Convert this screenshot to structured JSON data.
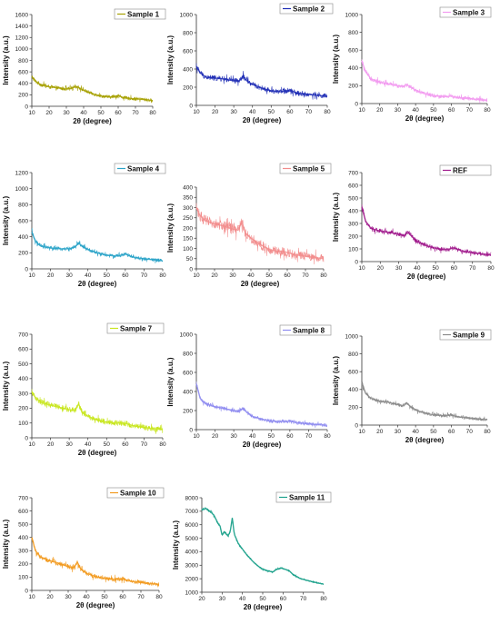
{
  "chart_data": [
    {
      "type": "line",
      "series": [
        {
          "name": "Sample 1",
          "color": "#a6a000"
        }
      ],
      "xlabel": "2θ (degree)",
      "ylabel": "Intensity (a.u.)",
      "xlim": [
        10,
        80
      ],
      "ylim": [
        0,
        1600
      ],
      "xticks": [
        10,
        20,
        30,
        40,
        50,
        60,
        70,
        80
      ],
      "yticks": [
        0,
        200,
        400,
        600,
        800,
        1000,
        1200,
        1400,
        1600
      ],
      "points": [
        [
          10,
          520
        ],
        [
          12,
          440
        ],
        [
          15,
          380
        ],
        [
          20,
          340
        ],
        [
          25,
          320
        ],
        [
          30,
          300
        ],
        [
          33,
          310
        ],
        [
          35,
          350
        ],
        [
          37,
          330
        ],
        [
          40,
          280
        ],
        [
          45,
          220
        ],
        [
          50,
          180
        ],
        [
          55,
          160
        ],
        [
          58,
          170
        ],
        [
          60,
          190
        ],
        [
          62,
          160
        ],
        [
          65,
          140
        ],
        [
          70,
          130
        ],
        [
          75,
          120
        ],
        [
          80,
          100
        ]
      ],
      "noise": 35
    },
    {
      "type": "line",
      "series": [
        {
          "name": "Sample 2",
          "color": "#1f2db5"
        }
      ],
      "xlabel": "2θ (degree)",
      "ylabel": "Intensity (a.u.)",
      "xlim": [
        10,
        80
      ],
      "ylim": [
        0,
        1000
      ],
      "xticks": [
        10,
        20,
        30,
        40,
        50,
        60,
        70,
        80
      ],
      "yticks": [
        0,
        200,
        400,
        600,
        800,
        1000
      ],
      "points": [
        [
          10,
          430
        ],
        [
          12,
          360
        ],
        [
          15,
          310
        ],
        [
          20,
          300
        ],
        [
          25,
          290
        ],
        [
          30,
          270
        ],
        [
          33,
          270
        ],
        [
          35,
          320
        ],
        [
          37,
          270
        ],
        [
          40,
          230
        ],
        [
          45,
          190
        ],
        [
          50,
          160
        ],
        [
          55,
          150
        ],
        [
          58,
          160
        ],
        [
          60,
          170
        ],
        [
          62,
          150
        ],
        [
          65,
          130
        ],
        [
          70,
          120
        ],
        [
          75,
          110
        ],
        [
          80,
          100
        ]
      ],
      "noise": 30
    },
    {
      "type": "line",
      "series": [
        {
          "name": "Sample 3",
          "color": "#f29af0"
        }
      ],
      "xlabel": "2θ (degree)",
      "ylabel": "Intensity (a.u.)",
      "xlim": [
        10,
        80
      ],
      "ylim": [
        0,
        1000
      ],
      "xticks": [
        10,
        20,
        30,
        40,
        50,
        60,
        70,
        80
      ],
      "yticks": [
        0,
        200,
        400,
        600,
        800,
        1000
      ],
      "points": [
        [
          10,
          480
        ],
        [
          12,
          360
        ],
        [
          15,
          280
        ],
        [
          20,
          240
        ],
        [
          25,
          220
        ],
        [
          30,
          200
        ],
        [
          33,
          195
        ],
        [
          35,
          210
        ],
        [
          37,
          190
        ],
        [
          40,
          150
        ],
        [
          45,
          110
        ],
        [
          50,
          90
        ],
        [
          55,
          80
        ],
        [
          58,
          80
        ],
        [
          60,
          85
        ],
        [
          62,
          75
        ],
        [
          65,
          65
        ],
        [
          70,
          55
        ],
        [
          75,
          45
        ],
        [
          80,
          40
        ]
      ],
      "noise": 25
    },
    {
      "type": "line",
      "series": [
        {
          "name": "Sample 4",
          "color": "#2aa3c8"
        }
      ],
      "xlabel": "2θ (degree)",
      "ylabel": "Intensity (a.u.)",
      "xlim": [
        10,
        80
      ],
      "ylim": [
        0,
        1200
      ],
      "xticks": [
        10,
        20,
        30,
        40,
        50,
        60,
        70,
        80
      ],
      "yticks": [
        0,
        200,
        400,
        600,
        800,
        1000,
        1200
      ],
      "points": [
        [
          10,
          460
        ],
        [
          12,
          340
        ],
        [
          15,
          280
        ],
        [
          20,
          260
        ],
        [
          25,
          250
        ],
        [
          30,
          250
        ],
        [
          33,
          270
        ],
        [
          35,
          320
        ],
        [
          37,
          280
        ],
        [
          40,
          240
        ],
        [
          45,
          200
        ],
        [
          50,
          170
        ],
        [
          55,
          160
        ],
        [
          58,
          170
        ],
        [
          60,
          185
        ],
        [
          62,
          165
        ],
        [
          65,
          140
        ],
        [
          70,
          125
        ],
        [
          75,
          115
        ],
        [
          80,
          100
        ]
      ],
      "noise": 25
    },
    {
      "type": "line",
      "series": [
        {
          "name": "Sample 5",
          "color": "#f28c8c"
        }
      ],
      "xlabel": "2θ (degree)",
      "ylabel": "Intensity (a.u.)",
      "xlim": [
        10,
        80
      ],
      "ylim": [
        0,
        400
      ],
      "xticks": [
        10,
        20,
        30,
        40,
        50,
        60,
        70,
        80
      ],
      "yticks": [
        0,
        50,
        100,
        150,
        200,
        250,
        300,
        350,
        400
      ],
      "points": [
        [
          10,
          300
        ],
        [
          12,
          260
        ],
        [
          15,
          235
        ],
        [
          20,
          220
        ],
        [
          25,
          210
        ],
        [
          30,
          195
        ],
        [
          33,
          190
        ],
        [
          35,
          230
        ],
        [
          37,
          175
        ],
        [
          40,
          150
        ],
        [
          45,
          120
        ],
        [
          50,
          95
        ],
        [
          55,
          85
        ],
        [
          58,
          85
        ],
        [
          60,
          80
        ],
        [
          62,
          75
        ],
        [
          65,
          68
        ],
        [
          70,
          62
        ],
        [
          75,
          55
        ],
        [
          80,
          50
        ]
      ],
      "noise": 22
    },
    {
      "type": "line",
      "series": [
        {
          "name": "REF",
          "color": "#a01a8c"
        }
      ],
      "xlabel": "2θ (degree)",
      "ylabel": "Intensity (a.u.)",
      "xlim": [
        10,
        80
      ],
      "ylim": [
        0,
        700
      ],
      "xticks": [
        10,
        20,
        30,
        40,
        50,
        60,
        70,
        80
      ],
      "yticks": [
        0,
        100,
        200,
        300,
        400,
        500,
        600,
        700
      ],
      "points": [
        [
          10,
          430
        ],
        [
          12,
          320
        ],
        [
          15,
          260
        ],
        [
          20,
          240
        ],
        [
          25,
          230
        ],
        [
          30,
          215
        ],
        [
          33,
          205
        ],
        [
          35,
          235
        ],
        [
          37,
          200
        ],
        [
          40,
          160
        ],
        [
          45,
          125
        ],
        [
          50,
          105
        ],
        [
          55,
          95
        ],
        [
          58,
          100
        ],
        [
          60,
          110
        ],
        [
          62,
          95
        ],
        [
          65,
          80
        ],
        [
          70,
          70
        ],
        [
          75,
          60
        ],
        [
          80,
          50
        ]
      ],
      "noise": 18
    },
    {
      "type": "line",
      "series": [
        {
          "name": "Sample 7",
          "color": "#c8e61e"
        }
      ],
      "xlabel": "2θ (degree)",
      "ylabel": "Intensity (a.u.)",
      "xlim": [
        10,
        80
      ],
      "ylim": [
        0,
        700
      ],
      "xticks": [
        10,
        20,
        30,
        40,
        50,
        60,
        70,
        80
      ],
      "yticks": [
        0,
        100,
        200,
        300,
        400,
        500,
        600,
        700
      ],
      "points": [
        [
          10,
          310
        ],
        [
          12,
          270
        ],
        [
          15,
          240
        ],
        [
          20,
          220
        ],
        [
          25,
          205
        ],
        [
          30,
          190
        ],
        [
          33,
          185
        ],
        [
          35,
          230
        ],
        [
          37,
          170
        ],
        [
          40,
          145
        ],
        [
          45,
          120
        ],
        [
          50,
          105
        ],
        [
          55,
          100
        ],
        [
          58,
          100
        ],
        [
          60,
          98
        ],
        [
          62,
          90
        ],
        [
          65,
          80
        ],
        [
          70,
          70
        ],
        [
          75,
          62
        ],
        [
          80,
          55
        ]
      ],
      "noise": 20
    },
    {
      "type": "line",
      "series": [
        {
          "name": "Sample 8",
          "color": "#8f8cf0"
        }
      ],
      "xlabel": "2θ (degree)",
      "ylabel": "Intensity (a.u.)",
      "xlim": [
        10,
        80
      ],
      "ylim": [
        0,
        1000
      ],
      "xticks": [
        10,
        20,
        30,
        40,
        50,
        60,
        70,
        80
      ],
      "yticks": [
        0,
        200,
        400,
        600,
        800,
        1000
      ],
      "points": [
        [
          10,
          480
        ],
        [
          12,
          330
        ],
        [
          15,
          270
        ],
        [
          20,
          240
        ],
        [
          25,
          220
        ],
        [
          30,
          200
        ],
        [
          33,
          195
        ],
        [
          35,
          225
        ],
        [
          37,
          180
        ],
        [
          40,
          140
        ],
        [
          45,
          110
        ],
        [
          50,
          90
        ],
        [
          55,
          85
        ],
        [
          58,
          85
        ],
        [
          60,
          90
        ],
        [
          62,
          80
        ],
        [
          65,
          70
        ],
        [
          70,
          60
        ],
        [
          75,
          52
        ],
        [
          80,
          45
        ]
      ],
      "noise": 22
    },
    {
      "type": "line",
      "series": [
        {
          "name": "Sample 9",
          "color": "#8a8a8a"
        }
      ],
      "xlabel": "2θ (degree)",
      "ylabel": "Intensity (a.u.)",
      "xlim": [
        10,
        80
      ],
      "ylim": [
        0,
        1000
      ],
      "xticks": [
        10,
        20,
        30,
        40,
        50,
        60,
        70,
        80
      ],
      "yticks": [
        0,
        200,
        400,
        600,
        800,
        1000
      ],
      "points": [
        [
          10,
          480
        ],
        [
          12,
          360
        ],
        [
          15,
          300
        ],
        [
          20,
          270
        ],
        [
          25,
          255
        ],
        [
          30,
          230
        ],
        [
          33,
          220
        ],
        [
          35,
          250
        ],
        [
          37,
          210
        ],
        [
          40,
          170
        ],
        [
          45,
          135
        ],
        [
          50,
          115
        ],
        [
          55,
          105
        ],
        [
          58,
          110
        ],
        [
          60,
          115
        ],
        [
          62,
          100
        ],
        [
          65,
          90
        ],
        [
          70,
          78
        ],
        [
          75,
          68
        ],
        [
          80,
          60
        ]
      ],
      "noise": 20
    },
    {
      "type": "line",
      "series": [
        {
          "name": "Sample 10",
          "color": "#f29a1e"
        }
      ],
      "xlabel": "2θ (degree)",
      "ylabel": "Intensity (a.u.)",
      "xlim": [
        10,
        80
      ],
      "ylim": [
        0,
        700
      ],
      "xticks": [
        10,
        20,
        30,
        40,
        50,
        60,
        70,
        80
      ],
      "yticks": [
        0,
        100,
        200,
        300,
        400,
        500,
        600,
        700
      ],
      "points": [
        [
          10,
          400
        ],
        [
          12,
          300
        ],
        [
          15,
          250
        ],
        [
          20,
          225
        ],
        [
          25,
          205
        ],
        [
          30,
          180
        ],
        [
          33,
          170
        ],
        [
          35,
          215
        ],
        [
          37,
          160
        ],
        [
          40,
          130
        ],
        [
          45,
          105
        ],
        [
          50,
          90
        ],
        [
          55,
          85
        ],
        [
          58,
          85
        ],
        [
          60,
          88
        ],
        [
          62,
          78
        ],
        [
          65,
          68
        ],
        [
          70,
          60
        ],
        [
          75,
          52
        ],
        [
          80,
          45
        ]
      ],
      "noise": 18
    },
    {
      "type": "line",
      "series": [
        {
          "name": "Sample 11",
          "color": "#1aa08a"
        }
      ],
      "xlabel": "2θ (degree)",
      "ylabel": "Intensity (a.u.)",
      "xlim": [
        20,
        80
      ],
      "ylim": [
        1000,
        8000
      ],
      "xticks": [
        20,
        30,
        40,
        50,
        60,
        70,
        80
      ],
      "yticks": [
        1000,
        2000,
        3000,
        4000,
        5000,
        6000,
        7000,
        8000
      ],
      "points": [
        [
          20,
          7100
        ],
        [
          22,
          7200
        ],
        [
          24,
          7000
        ],
        [
          26,
          6700
        ],
        [
          28,
          6100
        ],
        [
          29,
          5900
        ],
        [
          30,
          5200
        ],
        [
          31,
          5500
        ],
        [
          32,
          5300
        ],
        [
          33,
          5200
        ],
        [
          34,
          5500
        ],
        [
          35,
          6500
        ],
        [
          36,
          5300
        ],
        [
          38,
          4600
        ],
        [
          40,
          4200
        ],
        [
          42,
          3800
        ],
        [
          45,
          3300
        ],
        [
          48,
          2900
        ],
        [
          50,
          2700
        ],
        [
          52,
          2600
        ],
        [
          55,
          2500
        ],
        [
          57,
          2700
        ],
        [
          59,
          2800
        ],
        [
          61,
          2700
        ],
        [
          63,
          2600
        ],
        [
          65,
          2300
        ],
        [
          68,
          2050
        ],
        [
          70,
          1950
        ],
        [
          75,
          1750
        ],
        [
          80,
          1600
        ]
      ],
      "noise": 70
    }
  ]
}
